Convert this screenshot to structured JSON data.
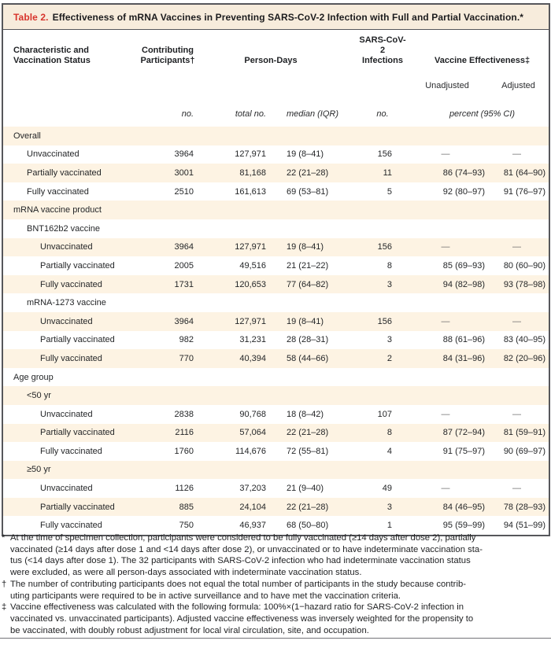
{
  "title": {
    "label": "Table 2.",
    "text": "Effectiveness of mRNA Vaccines in Preventing SARS-CoV-2 Infection with Full and Partial Vaccination.*"
  },
  "header": {
    "characteristic": "Characteristic and Vaccination Status",
    "contributing_participants": "Contributing Participants†",
    "person_days": "Person-Days",
    "sars_cov2_infections": "SARS-CoV-2 Infections",
    "vaccine_effectiveness": "Vaccine Effectiveness‡",
    "unadjusted": "Unadjusted",
    "adjusted": "Adjusted",
    "units": {
      "participants_no": "no.",
      "total_no": "total no.",
      "median_iqr": "median (IQR)",
      "infections_no": "no.",
      "percent_ci": "percent (95% CI)"
    }
  },
  "rows": [
    {
      "label": "Overall",
      "indent": 0,
      "cells": null
    },
    {
      "label": "Unvaccinated",
      "indent": 1,
      "cells": [
        "3964",
        "127,971",
        "19 (8–41)",
        "156",
        "—",
        "—"
      ]
    },
    {
      "label": "Partially vaccinated",
      "indent": 1,
      "cells": [
        "3001",
        "81,168",
        "22 (21–28)",
        "11",
        "86 (74–93)",
        "81 (64–90)"
      ]
    },
    {
      "label": "Fully vaccinated",
      "indent": 1,
      "cells": [
        "2510",
        "161,613",
        "69 (53–81)",
        "5",
        "92 (80–97)",
        "91 (76–97)"
      ]
    },
    {
      "label": "mRNA vaccine product",
      "indent": 0,
      "cells": null
    },
    {
      "label": "BNT162b2 vaccine",
      "indent": 1,
      "cells": null
    },
    {
      "label": "Unvaccinated",
      "indent": 2,
      "cells": [
        "3964",
        "127,971",
        "19 (8–41)",
        "156",
        "—",
        "—"
      ]
    },
    {
      "label": "Partially vaccinated",
      "indent": 2,
      "cells": [
        "2005",
        "49,516",
        "21 (21–22)",
        "8",
        "85 (69–93)",
        "80 (60–90)"
      ]
    },
    {
      "label": "Fully vaccinated",
      "indent": 2,
      "cells": [
        "1731",
        "120,653",
        "77 (64–82)",
        "3",
        "94 (82–98)",
        "93 (78–98)"
      ]
    },
    {
      "label": "mRNA-1273 vaccine",
      "indent": 1,
      "cells": null
    },
    {
      "label": "Unvaccinated",
      "indent": 2,
      "cells": [
        "3964",
        "127,971",
        "19 (8–41)",
        "156",
        "—",
        "—"
      ]
    },
    {
      "label": "Partially vaccinated",
      "indent": 2,
      "cells": [
        "982",
        "31,231",
        "28 (28–31)",
        "3",
        "88 (61–96)",
        "83 (40–95)"
      ]
    },
    {
      "label": "Fully vaccinated",
      "indent": 2,
      "cells": [
        "770",
        "40,394",
        "58 (44–66)",
        "2",
        "84 (31–96)",
        "82 (20–96)"
      ]
    },
    {
      "label": "Age group",
      "indent": 0,
      "cells": null
    },
    {
      "label": "<50 yr",
      "indent": 1,
      "cells": null
    },
    {
      "label": "Unvaccinated",
      "indent": 2,
      "cells": [
        "2838",
        "90,768",
        "18 (8–42)",
        "107",
        "—",
        "—"
      ]
    },
    {
      "label": "Partially vaccinated",
      "indent": 2,
      "cells": [
        "2116",
        "57,064",
        "22 (21–28)",
        "8",
        "87 (72–94)",
        "81 (59–91)"
      ]
    },
    {
      "label": "Fully vaccinated",
      "indent": 2,
      "cells": [
        "1760",
        "114,676",
        "72 (55–81)",
        "4",
        "91 (75–97)",
        "90 (69–97)"
      ]
    },
    {
      "label": "≥50 yr",
      "indent": 1,
      "cells": null
    },
    {
      "label": "Unvaccinated",
      "indent": 2,
      "cells": [
        "1126",
        "37,203",
        "21 (9–40)",
        "49",
        "—",
        "—"
      ]
    },
    {
      "label": "Partially vaccinated",
      "indent": 2,
      "cells": [
        "885",
        "24,104",
        "22 (21–28)",
        "3",
        "84 (46–95)",
        "78 (28–93)"
      ]
    },
    {
      "label": "Fully vaccinated",
      "indent": 2,
      "cells": [
        "750",
        "46,937",
        "68 (50–80)",
        "1",
        "95 (59–99)",
        "94 (51–99)"
      ]
    }
  ],
  "footnotes": [
    {
      "marker": "*",
      "lines": [
        "At the time of specimen collection, participants were considered to be fully vaccinated (≥14 days after dose 2), partially",
        "vaccinated (≥14 days after dose 1 and <14 days after dose 2), or unvaccinated or to have indeterminate vaccination sta-",
        "tus (<14 days after dose 1). The 32 participants with SARS-CoV-2 infection who had indeterminate vaccination status",
        "were excluded, as were all person-days associated with indeterminate vaccination status."
      ]
    },
    {
      "marker": "†",
      "lines": [
        "The number of contributing participants does not equal the total number of participants in the study because contrib-",
        "uting participants were required to be in active surveillance and to have met the vaccination criteria."
      ]
    },
    {
      "marker": "‡",
      "lines": [
        "Vaccine effectiveness was calculated with the following formula: 100%×(1−hazard ratio for SARS-CoV-2 infection in",
        "vaccinated vs. unvaccinated participants). Adjusted vaccine effectiveness was inversely weighted for the propensity to",
        "be vaccinated, with doubly robust adjustment for local viral circulation, site, and occupation."
      ]
    }
  ],
  "colors": {
    "table_number_red": "#d7342c",
    "stripe_cream": "#fdf3e3",
    "title_bar_cream": "#f7ecdc",
    "border_gray": "#56575b"
  }
}
